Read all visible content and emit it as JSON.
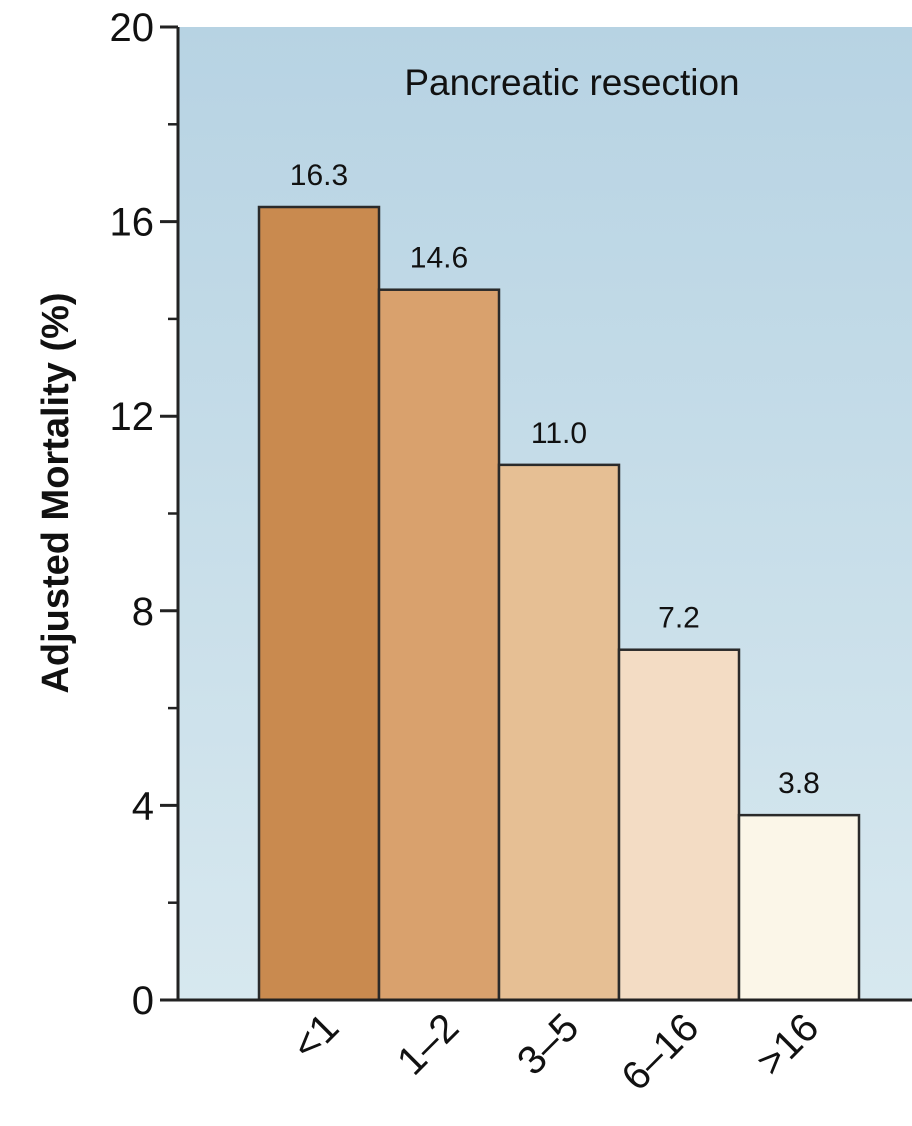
{
  "chart_data": {
    "type": "bar",
    "title": "Pancreatic resection",
    "ylabel": "Adjusted Mortality (%)",
    "xlabel": "",
    "categories": [
      "<1",
      "1–2",
      "3–5",
      "6–16",
      ">16"
    ],
    "values": [
      16.3,
      14.6,
      11.0,
      7.2,
      3.8
    ],
    "value_labels": [
      "16.3",
      "14.6",
      "11.0",
      "7.2",
      "3.8"
    ],
    "ylim": [
      0,
      20
    ],
    "yticks": [
      0,
      4,
      8,
      12,
      16,
      20
    ],
    "ytick_labels": [
      "0",
      "4",
      "8",
      "12",
      "16",
      "20"
    ],
    "grid": false,
    "legend": "none",
    "colors": {
      "plot_background_top": "#b7d3e3",
      "plot_background_bottom": "#d7e8ef",
      "bar_fills": [
        "#c98a4f",
        "#d9a16d",
        "#e6bf94",
        "#f3dcc4",
        "#fbf6e8"
      ],
      "bar_stroke": "#2a2a2a",
      "axis": "#222222"
    }
  }
}
